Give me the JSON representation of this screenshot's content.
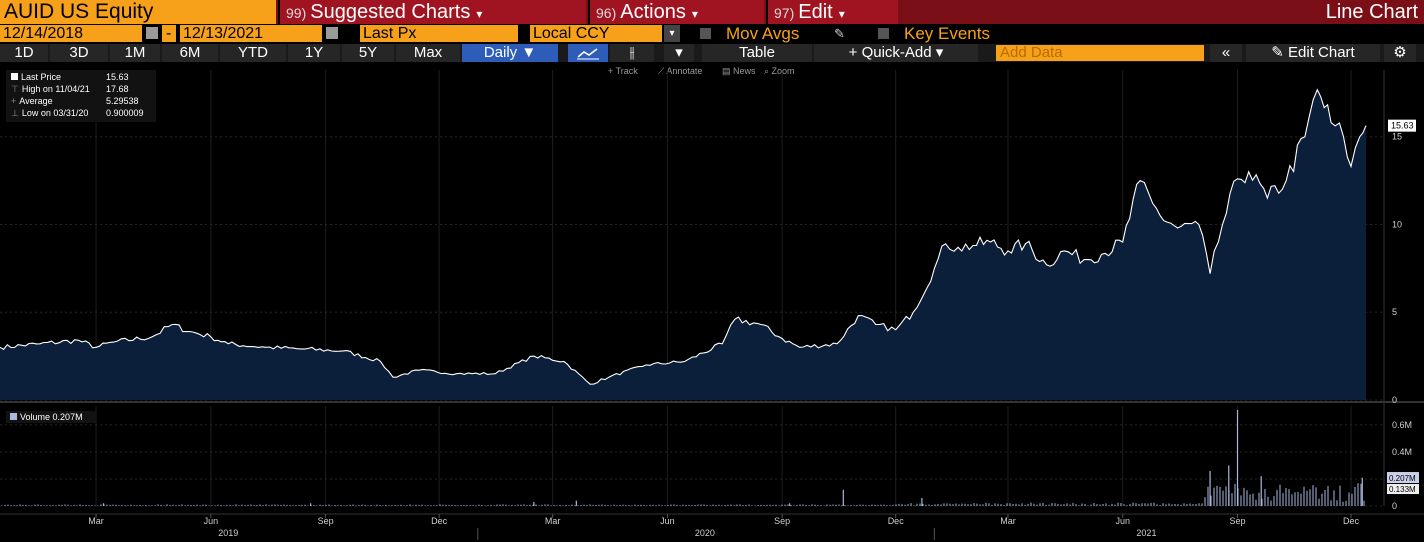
{
  "header": {
    "ticker": "AUID US Equity",
    "menus": [
      {
        "num": "99)",
        "label": "Suggested Charts"
      },
      {
        "num": "96)",
        "label": "Actions"
      },
      {
        "num": "97)",
        "label": "Edit"
      }
    ],
    "chart_type": "Line Chart"
  },
  "settings": {
    "start_date": "12/14/2018",
    "dash": "-",
    "end_date": "12/13/2021",
    "field": "Last Px",
    "currency": "Local CCY",
    "mov_avgs": "Mov Avgs",
    "key_events": "Key Events"
  },
  "toolbar": {
    "ranges": [
      "1D",
      "3D",
      "1M",
      "6M",
      "YTD",
      "1Y",
      "5Y",
      "Max"
    ],
    "frequency": "Daily",
    "table": "Table",
    "quick_add": "+ Quick-Add",
    "add_data_placeholder": "Add Data",
    "edit_chart": "Edit Chart",
    "chart_tools": [
      "Track",
      "Annotate",
      "News",
      "Zoom"
    ]
  },
  "price_legend": {
    "rows": [
      {
        "label": "Last Price",
        "value": "15.63"
      },
      {
        "label": "High on 11/04/21",
        "value": "17.68"
      },
      {
        "label": "Average",
        "value": "5.29538"
      },
      {
        "label": "Low on 03/31/20",
        "value": "0.900009"
      }
    ]
  },
  "volume_legend": {
    "label": "Volume",
    "value": "0.207M"
  },
  "colors": {
    "price_line": "#ffffff",
    "price_fill": "#0b1f3a",
    "accent_orange": "#f7a11a",
    "header_red": "#a01320",
    "volume_bar": "#a9b8e0"
  },
  "chart_data": [
    {
      "type": "area",
      "series": [
        {
          "name": "Last Price",
          "color": "#ffffff"
        }
      ],
      "x": [
        "2018-12-14",
        "2019-01-15",
        "2019-02-15",
        "2019-03-01",
        "2019-03-15",
        "2019-04-15",
        "2019-05-01",
        "2019-05-15",
        "2019-06-01",
        "2019-06-15",
        "2019-07-15",
        "2019-08-15",
        "2019-09-15",
        "2019-10-15",
        "2019-10-25",
        "2019-11-15",
        "2019-12-15",
        "2020-01-15",
        "2020-02-15",
        "2020-03-10",
        "2020-03-31",
        "2020-04-15",
        "2020-05-15",
        "2020-06-15",
        "2020-07-15",
        "2020-07-25",
        "2020-08-15",
        "2020-09-01",
        "2020-09-15",
        "2020-10-15",
        "2020-11-01",
        "2020-11-15",
        "2020-12-01",
        "2020-12-15",
        "2021-01-01",
        "2021-01-10",
        "2021-01-20",
        "2021-02-01",
        "2021-02-15",
        "2021-03-01",
        "2021-03-15",
        "2021-04-01",
        "2021-04-15",
        "2021-05-01",
        "2021-05-15",
        "2021-06-01",
        "2021-06-15",
        "2021-06-25",
        "2021-07-01",
        "2021-07-15",
        "2021-08-01",
        "2021-08-10",
        "2021-08-20",
        "2021-09-01",
        "2021-09-10",
        "2021-09-25",
        "2021-10-10",
        "2021-10-25",
        "2021-11-04",
        "2021-11-15",
        "2021-11-25",
        "2021-12-01",
        "2021-12-08",
        "2021-12-13"
      ],
      "values": [
        3.0,
        3.2,
        3.4,
        3.0,
        3.3,
        3.6,
        4.3,
        3.9,
        3.6,
        3.2,
        3.0,
        2.9,
        2.8,
        2.2,
        1.3,
        1.7,
        1.5,
        1.5,
        2.5,
        2.2,
        0.9,
        1.3,
        2.0,
        2.2,
        3.2,
        4.6,
        4.3,
        3.5,
        3.0,
        3.2,
        4.8,
        4.3,
        4.0,
        5.0,
        7.5,
        8.9,
        8.7,
        8.8,
        9.0,
        8.5,
        8.9,
        7.7,
        8.5,
        8.0,
        8.3,
        9.0,
        12.5,
        11.2,
        10.5,
        9.8,
        10.0,
        7.2,
        10.0,
        12.6,
        13.0,
        11.5,
        12.5,
        15.0,
        17.68,
        15.8,
        15.0,
        13.3,
        15.0,
        15.63
      ],
      "yticks": [
        0,
        5,
        10,
        15
      ],
      "ylim": [
        0,
        18.8
      ],
      "last_value_label": "15.63",
      "grid": true
    },
    {
      "type": "bar",
      "series": [
        {
          "name": "Volume",
          "color": "#a9b8e0"
        }
      ],
      "yticks": [
        "0",
        "0.2M",
        "0.4M",
        "0.6M"
      ],
      "ytick_values": [
        0,
        0.2,
        0.4,
        0.6
      ],
      "ylim": [
        0,
        0.74
      ],
      "last_value_labels": [
        "0.207M",
        "0.133M"
      ],
      "spikes": [
        {
          "x": "2019-03-07",
          "v": 0.02
        },
        {
          "x": "2019-08-20",
          "v": 0.02
        },
        {
          "x": "2020-02-15",
          "v": 0.03
        },
        {
          "x": "2020-03-20",
          "v": 0.04
        },
        {
          "x": "2020-09-07",
          "v": 0.02
        },
        {
          "x": "2020-10-20",
          "v": 0.12
        },
        {
          "x": "2020-12-22",
          "v": 0.06
        },
        {
          "x": "2021-08-10",
          "v": 0.26
        },
        {
          "x": "2021-08-25",
          "v": 0.3
        },
        {
          "x": "2021-09-01",
          "v": 0.71
        },
        {
          "x": "2021-09-20",
          "v": 0.22
        },
        {
          "x": "2021-12-10",
          "v": 0.21
        }
      ]
    }
  ],
  "x_axis": {
    "months": [
      {
        "label": "Mar",
        "date": "2019-03-01"
      },
      {
        "label": "Jun",
        "date": "2019-06-01"
      },
      {
        "label": "Sep",
        "date": "2019-09-01"
      },
      {
        "label": "Dec",
        "date": "2019-12-01"
      },
      {
        "label": "Mar",
        "date": "2020-03-01"
      },
      {
        "label": "Jun",
        "date": "2020-06-01"
      },
      {
        "label": "Sep",
        "date": "2020-09-01"
      },
      {
        "label": "Dec",
        "date": "2020-12-01"
      },
      {
        "label": "Mar",
        "date": "2021-03-01"
      },
      {
        "label": "Jun",
        "date": "2021-06-01"
      },
      {
        "label": "Sep",
        "date": "2021-09-01"
      },
      {
        "label": "Dec",
        "date": "2021-12-01"
      }
    ],
    "years": [
      {
        "label": "2019",
        "date": "2019-06-15"
      },
      {
        "label": "2020",
        "date": "2020-07-01"
      },
      {
        "label": "2021",
        "date": "2021-06-20"
      }
    ]
  }
}
